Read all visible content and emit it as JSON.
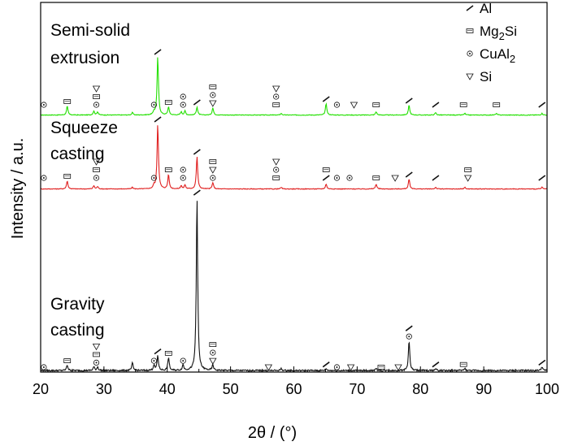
{
  "chart_data": {
    "type": "line",
    "xlabel": "2θ / (°)",
    "ylabel": "Intensity / a.u.",
    "xlim": [
      20,
      100
    ],
    "xticks": [
      20,
      30,
      40,
      50,
      60,
      70,
      80,
      90,
      100
    ],
    "y_ticks_shown": false,
    "grid": false,
    "legend": {
      "placement": "top-right",
      "entries": [
        {
          "symbol": "slash",
          "label": "Al"
        },
        {
          "symbol": "box",
          "label": "Mg2Si"
        },
        {
          "symbol": "circle",
          "label": "CuAl2"
        },
        {
          "symbol": "triangle",
          "label": "Si"
        }
      ]
    },
    "series": [
      {
        "name": "Semi-solid extrusion",
        "label_lines": [
          "Semi-solid",
          "extrusion"
        ],
        "color": "#22e000",
        "peaks": [
          [
            24.2,
            0.11
          ],
          [
            28.4,
            0.05
          ],
          [
            29.0,
            0.04
          ],
          [
            34.5,
            0.03
          ],
          [
            37.9,
            0.04
          ],
          [
            38.5,
            0.72
          ],
          [
            40.2,
            0.1
          ],
          [
            42.2,
            0.04
          ],
          [
            42.8,
            0.05
          ],
          [
            44.7,
            0.1
          ],
          [
            47.2,
            0.09
          ],
          [
            58.0,
            0.02
          ],
          [
            65.1,
            0.14
          ],
          [
            73.0,
            0.04
          ],
          [
            78.2,
            0.12
          ],
          [
            82.4,
            0.03
          ],
          [
            87.0,
            0.02
          ],
          [
            92.0,
            0.02
          ],
          [
            99.2,
            0.02
          ]
        ],
        "markers": [
          {
            "x": 20.5,
            "s": [
              "circle"
            ]
          },
          {
            "x": 24.2,
            "s": [
              "box"
            ]
          },
          {
            "x": 28.8,
            "s": [
              "triangle",
              "box",
              "circle"
            ]
          },
          {
            "x": 37.9,
            "s": [
              "circle"
            ]
          },
          {
            "x": 38.5,
            "s": [
              "slash"
            ]
          },
          {
            "x": 40.2,
            "s": [
              "box"
            ]
          },
          {
            "x": 42.5,
            "s": [
              "circle",
              "circle"
            ]
          },
          {
            "x": 44.7,
            "s": [
              "slash"
            ]
          },
          {
            "x": 47.2,
            "s": [
              "box",
              "circle",
              "triangle"
            ]
          },
          {
            "x": 57.2,
            "s": [
              "triangle",
              "circle",
              "box"
            ]
          },
          {
            "x": 65.1,
            "s": [
              "slash"
            ]
          },
          {
            "x": 66.8,
            "s": [
              "circle"
            ]
          },
          {
            "x": 69.5,
            "s": [
              "triangle"
            ]
          },
          {
            "x": 73.0,
            "s": [
              "box"
            ]
          },
          {
            "x": 78.2,
            "s": [
              "slash"
            ]
          },
          {
            "x": 82.4,
            "s": [
              "slash"
            ]
          },
          {
            "x": 86.8,
            "s": [
              "box"
            ]
          },
          {
            "x": 92.0,
            "s": [
              "box"
            ]
          },
          {
            "x": 99.2,
            "s": [
              "slash"
            ]
          }
        ]
      },
      {
        "name": "Squeeze casting",
        "label_lines": [
          "Squeeze",
          "casting"
        ],
        "color": "#e02020",
        "peaks": [
          [
            24.2,
            0.1
          ],
          [
            28.4,
            0.04
          ],
          [
            29.0,
            0.03
          ],
          [
            34.5,
            0.02
          ],
          [
            37.9,
            0.04
          ],
          [
            38.5,
            0.8
          ],
          [
            40.2,
            0.18
          ],
          [
            42.2,
            0.04
          ],
          [
            42.8,
            0.05
          ],
          [
            44.7,
            0.4
          ],
          [
            47.2,
            0.08
          ],
          [
            58.0,
            0.02
          ],
          [
            65.1,
            0.06
          ],
          [
            73.0,
            0.06
          ],
          [
            78.2,
            0.12
          ],
          [
            82.4,
            0.02
          ],
          [
            87.0,
            0.02
          ],
          [
            99.2,
            0.02
          ]
        ],
        "markers": [
          {
            "x": 20.5,
            "s": [
              "circle"
            ]
          },
          {
            "x": 24.2,
            "s": [
              "box"
            ]
          },
          {
            "x": 28.8,
            "s": [
              "triangle",
              "box",
              "circle"
            ]
          },
          {
            "x": 37.9,
            "s": [
              "circle"
            ]
          },
          {
            "x": 38.5,
            "s": [
              "slash"
            ]
          },
          {
            "x": 40.2,
            "s": [
              "box"
            ]
          },
          {
            "x": 42.5,
            "s": [
              "circle",
              "circle"
            ]
          },
          {
            "x": 44.7,
            "s": [
              "slash"
            ]
          },
          {
            "x": 47.2,
            "s": [
              "box",
              "triangle",
              "circle"
            ]
          },
          {
            "x": 57.2,
            "s": [
              "triangle",
              "circle",
              "box"
            ]
          },
          {
            "x": 65.1,
            "s": [
              "box",
              "slash"
            ]
          },
          {
            "x": 66.8,
            "s": [
              "circle"
            ]
          },
          {
            "x": 68.8,
            "s": [
              "circle"
            ]
          },
          {
            "x": 73.0,
            "s": [
              "box"
            ]
          },
          {
            "x": 76.0,
            "s": [
              "triangle"
            ]
          },
          {
            "x": 78.2,
            "s": [
              "slash"
            ]
          },
          {
            "x": 82.4,
            "s": [
              "slash"
            ]
          },
          {
            "x": 87.5,
            "s": [
              "box",
              "triangle"
            ]
          },
          {
            "x": 99.2,
            "s": [
              "slash"
            ]
          }
        ]
      },
      {
        "name": "Gravity casting",
        "label_lines": [
          "Gravity",
          "casting"
        ],
        "color": "#111111",
        "peaks": [
          [
            24.2,
            0.03
          ],
          [
            28.4,
            0.02
          ],
          [
            29.0,
            0.02
          ],
          [
            34.5,
            0.04
          ],
          [
            37.9,
            0.03
          ],
          [
            38.5,
            0.08
          ],
          [
            40.2,
            0.07
          ],
          [
            42.5,
            0.03
          ],
          [
            44.7,
            0.93
          ],
          [
            47.2,
            0.03
          ],
          [
            58.0,
            0.01
          ],
          [
            65.1,
            0.01
          ],
          [
            73.0,
            0.01
          ],
          [
            78.2,
            0.16
          ],
          [
            82.4,
            0.01
          ],
          [
            87.0,
            0.01
          ],
          [
            99.2,
            0.02
          ]
        ],
        "markers": [
          {
            "x": 20.5,
            "s": [
              "circle"
            ]
          },
          {
            "x": 24.2,
            "s": [
              "box"
            ]
          },
          {
            "x": 28.8,
            "s": [
              "triangle",
              "box",
              "circle"
            ]
          },
          {
            "x": 37.9,
            "s": [
              "circle"
            ]
          },
          {
            "x": 38.5,
            "s": [
              "slash"
            ]
          },
          {
            "x": 40.2,
            "s": [
              "box"
            ]
          },
          {
            "x": 42.5,
            "s": [
              "circle"
            ]
          },
          {
            "x": 44.7,
            "s": [
              "slash"
            ]
          },
          {
            "x": 47.2,
            "s": [
              "box",
              "circle",
              "triangle"
            ]
          },
          {
            "x": 56.0,
            "s": [
              "triangle"
            ]
          },
          {
            "x": 65.1,
            "s": [
              "slash"
            ]
          },
          {
            "x": 66.8,
            "s": [
              "circle"
            ]
          },
          {
            "x": 69.0,
            "s": [
              "triangle"
            ]
          },
          {
            "x": 73.8,
            "s": [
              "box"
            ]
          },
          {
            "x": 76.5,
            "s": [
              "triangle"
            ]
          },
          {
            "x": 78.2,
            "s": [
              "slash",
              "circle"
            ]
          },
          {
            "x": 82.4,
            "s": [
              "slash"
            ]
          },
          {
            "x": 86.8,
            "s": [
              "box"
            ]
          },
          {
            "x": 99.2,
            "s": [
              "slash"
            ]
          }
        ]
      }
    ]
  }
}
